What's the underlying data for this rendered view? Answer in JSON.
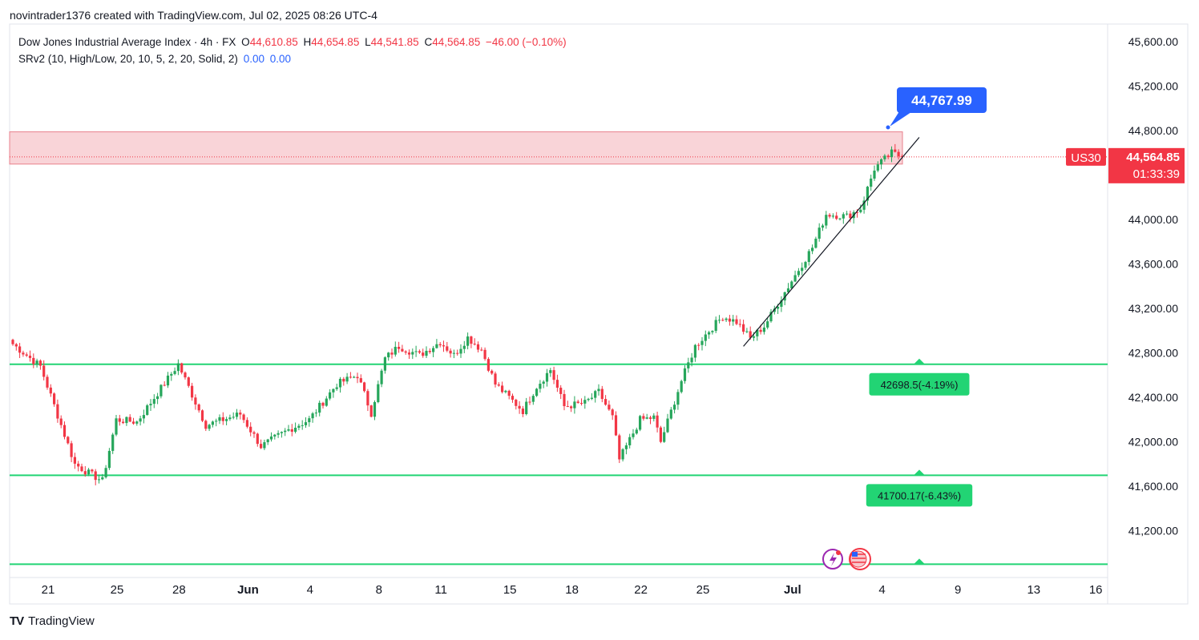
{
  "header": {
    "text": "novintrader1376 created with TradingView.com, Jul 02, 2025 08:26 UTC-4"
  },
  "legend": {
    "symbol": "Dow Jones Industrial Average Index · 4h · FX",
    "open_label": "O",
    "open": "44,610.85",
    "high_label": "H",
    "high": "44,654.85",
    "low_label": "L",
    "low": "44,541.85",
    "close_label": "C",
    "close": "44,564.85",
    "change": "−46.00 (−0.10%)",
    "indicator": "SRv2 (10, High/Low, 20, 10, 5, 2, 20, Solid, 2)",
    "ind_val1": "0.00",
    "ind_val2": "0.00"
  },
  "price_badge": {
    "ticker": "US30",
    "price": "44,564.85",
    "countdown": "01:33:39"
  },
  "callout": {
    "value": "44,767.99"
  },
  "levels": [
    {
      "price": 42698.5,
      "label": "42698.5(-4.19%)"
    },
    {
      "price": 41700.17,
      "label": "41700.17(-6.43%)"
    },
    {
      "price": 40900,
      "label": ""
    }
  ],
  "footer": {
    "brand": "TradingView"
  },
  "colors": {
    "up": "#26a65b",
    "down": "#f23645",
    "level": "#22d474",
    "zone": "#f9d4d8",
    "callout": "#2962ff",
    "badge": "#f23645"
  },
  "chart_data": {
    "type": "candlestick",
    "title": "Dow Jones Industrial Average Index · 4h · FX",
    "ylim": [
      40780,
      45760
    ],
    "y_ticks": [
      "45,600.00",
      "45,200.00",
      "44,800.00",
      "44,400.00",
      "44,000.00",
      "43,600.00",
      "43,200.00",
      "42,800.00",
      "42,400.00",
      "42,000.00",
      "41,600.00",
      "41,200.00"
    ],
    "y_tick_values": [
      45600,
      45200,
      44800,
      44400,
      44000,
      43600,
      43200,
      42800,
      42400,
      42000,
      41600,
      41200
    ],
    "x_ticks": [
      "21",
      "25",
      "28",
      "Jun",
      "4",
      "8",
      "11",
      "15",
      "18",
      "22",
      "25",
      "Jul",
      "4",
      "9",
      "13",
      "16"
    ],
    "x_tick_index": [
      0,
      20,
      38,
      58,
      76,
      96,
      114,
      134,
      152,
      172,
      190,
      216,
      242,
      264,
      286,
      304
    ],
    "resistance_zone": {
      "from": 44500,
      "to": 44790
    },
    "trendline": {
      "from": [
        212,
        42860
      ],
      "to": [
        263,
        44740
      ]
    },
    "candle_count": 240,
    "path": [
      [
        0,
        42880
      ],
      [
        8,
        42680
      ],
      [
        18,
        41800
      ],
      [
        22,
        41720
      ],
      [
        26,
        41650
      ],
      [
        30,
        42200
      ],
      [
        36,
        42180
      ],
      [
        48,
        42700
      ],
      [
        56,
        42150
      ],
      [
        66,
        42250
      ],
      [
        72,
        41960
      ],
      [
        80,
        42110
      ],
      [
        86,
        42200
      ],
      [
        94,
        42520
      ],
      [
        100,
        42600
      ],
      [
        104,
        42260
      ],
      [
        108,
        42750
      ],
      [
        112,
        42860
      ],
      [
        118,
        42780
      ],
      [
        124,
        42900
      ],
      [
        128,
        42780
      ],
      [
        132,
        42940
      ],
      [
        136,
        42830
      ],
      [
        140,
        42520
      ],
      [
        148,
        42280
      ],
      [
        152,
        42500
      ],
      [
        156,
        42650
      ],
      [
        160,
        42320
      ],
      [
        166,
        42350
      ],
      [
        170,
        42450
      ],
      [
        174,
        42220
      ],
      [
        176,
        41840
      ],
      [
        182,
        42200
      ],
      [
        186,
        42220
      ],
      [
        188,
        42000
      ],
      [
        194,
        42550
      ],
      [
        198,
        42860
      ],
      [
        202,
        43000
      ],
      [
        206,
        43130
      ],
      [
        210,
        43080
      ],
      [
        214,
        42930
      ],
      [
        218,
        43040
      ],
      [
        226,
        43450
      ],
      [
        232,
        43750
      ],
      [
        236,
        44050
      ],
      [
        242,
        44030
      ],
      [
        246,
        44100
      ],
      [
        250,
        44460
      ],
      [
        255,
        44600
      ],
      [
        258,
        44565
      ]
    ]
  }
}
